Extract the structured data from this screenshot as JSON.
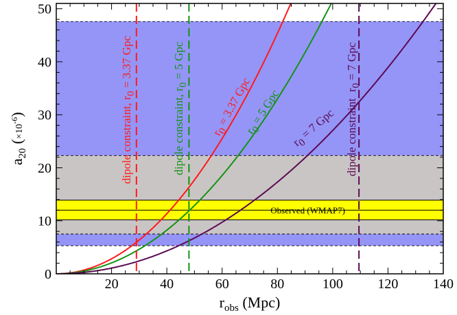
{
  "chart_data": {
    "type": "line",
    "xlabel": "r",
    "xlabel_sub": "obs",
    "xlabel_unit": " (Mpc)",
    "ylabel": "a",
    "ylabel_sub": "20",
    "ylabel_scale_prefix": "(",
    "ylabel_scale": "×10",
    "ylabel_scale_exp": "-6",
    "ylabel_scale_suffix": ")",
    "xlim": [
      0,
      140
    ],
    "ylim": [
      0,
      51
    ],
    "xticks": [
      20,
      40,
      60,
      80,
      100,
      120,
      140
    ],
    "yticks": [
      0,
      10,
      20,
      30,
      40,
      50
    ],
    "series": [
      {
        "name": "r0 = 3.37 Gpc",
        "label_main": "r",
        "label_sub": "0",
        "label_rest": " = 3.37 Gpc",
        "color": "#ff1a1a",
        "x_at_50": 84,
        "exponent": 2
      },
      {
        "name": "r0 = 5 Gpc",
        "label_main": "r",
        "label_sub": "0",
        "label_rest": " = 5 Gpc",
        "color": "#139313",
        "x_at_50": 98.5,
        "exponent": 2
      },
      {
        "name": "r0 = 7 Gpc",
        "label_main": "r",
        "label_sub": "0",
        "label_rest": " = 7 Gpc",
        "color": "#5a0a52",
        "x_at_50": 136,
        "exponent": 2
      }
    ],
    "bands": [
      {
        "name": "upper-blue",
        "y0": 22.3,
        "y1": 47.6,
        "color": "#9595f7"
      },
      {
        "name": "gray",
        "y0": 7.5,
        "y1": 22.3,
        "color": "#cac5c5"
      },
      {
        "name": "lower-blue",
        "y0": 5.3,
        "y1": 7.5,
        "color": "#9595f7"
      },
      {
        "name": "observed",
        "y0": 10.2,
        "y1": 13.9,
        "color": "#ffff00",
        "center": 12.0
      }
    ],
    "band_label": "Observed (WMAP7)",
    "band_label_x": 91,
    "band_label_y": 12,
    "dipole_lines": [
      {
        "x": 29,
        "color": "#ff1a1a",
        "label": "dipole constraint, r",
        "label_sub": "0",
        "label_rest": " = 3.37 Gpc"
      },
      {
        "x": 48,
        "color": "#139313",
        "label": "dipole constraint, r",
        "label_sub": "0",
        "label_rest": " = 5 Gpc"
      },
      {
        "x": 109.5,
        "color": "#5a0a52",
        "label": "dipole constraint",
        "label_sub": "0",
        "label_rest": " = 7 Gpc",
        "label2_main": "r"
      }
    ]
  }
}
